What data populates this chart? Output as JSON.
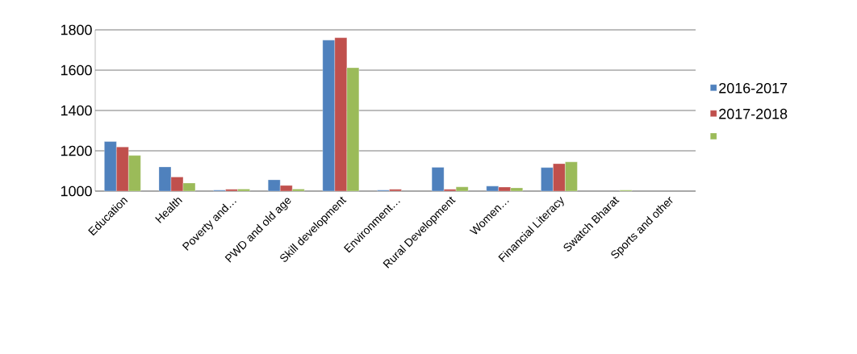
{
  "chart_data": {
    "type": "bar",
    "categories": [
      "Education",
      "Health",
      "Poverty and…",
      "PWD and old age",
      "Skill development",
      "Environment…",
      "Rural Development",
      "Women…",
      "Financial Literacy",
      "Swatch Bharat",
      "Sports and other"
    ],
    "series": [
      {
        "name": "2016-2017",
        "color": "#4f81bd",
        "values": [
          1246,
          1120,
          1005,
          1056,
          1749,
          1005,
          1118,
          1025,
          1117,
          null,
          null
        ]
      },
      {
        "name": "2017-2018",
        "color": "#c0504d",
        "values": [
          1219,
          1070,
          1009,
          1028,
          1761,
          1009,
          1009,
          1020,
          1136,
          null,
          null
        ]
      },
      {
        "color": "#9bbb59",
        "values": [
          1177,
          1040,
          1010,
          1010,
          1612,
          null,
          1021,
          1016,
          1145,
          1005,
          null
        ]
      }
    ],
    "ylim": [
      1000,
      1800
    ],
    "yticks": [
      1000,
      1200,
      1400,
      1600,
      1800
    ],
    "grid": "y",
    "legend": "right"
  }
}
